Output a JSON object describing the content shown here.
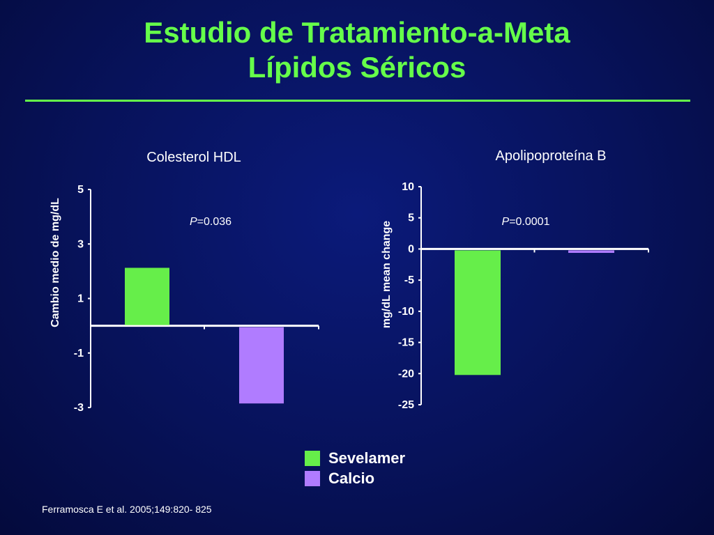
{
  "slide": {
    "title_line1": "Estudio de Tratamiento-a-Meta",
    "title_line2": "Lípidos Séricos",
    "citation": "Ferramosca E et al. 2005;149:820- 825"
  },
  "colors": {
    "title": "#66ff4a",
    "sevelamer": "#66ee4a",
    "calcio": "#b07cff",
    "axis": "#ffffff"
  },
  "legend": [
    {
      "label": "Sevelamer",
      "color": "#66ee4a"
    },
    {
      "label": "Calcio",
      "color": "#b07cff"
    }
  ],
  "chart_data": [
    {
      "type": "bar",
      "title": "Colesterol HDL",
      "ylabel": "Cambio medio de mg/dL",
      "xlabel": "",
      "ylim": [
        -3,
        5
      ],
      "yticks": [
        5,
        3,
        1,
        -1,
        -3
      ],
      "annotation_prefix": "P",
      "annotation_value": "=0.036",
      "series": [
        {
          "name": "Sevelamer",
          "values": [
            2.1
          ]
        },
        {
          "name": "Calcio",
          "values": [
            -2.8
          ]
        }
      ]
    },
    {
      "type": "bar",
      "title": "Apolipoproteína B",
      "ylabel": "mg/dL mean change",
      "xlabel": "",
      "ylim": [
        -25,
        10
      ],
      "yticks": [
        10,
        5,
        0,
        -5,
        -10,
        -15,
        -20,
        -25
      ],
      "annotation_prefix": "P",
      "annotation_value": "=0.0001",
      "series": [
        {
          "name": "Sevelamer",
          "values": [
            -20
          ]
        },
        {
          "name": "Calcio",
          "values": [
            -0.4
          ]
        }
      ]
    }
  ]
}
